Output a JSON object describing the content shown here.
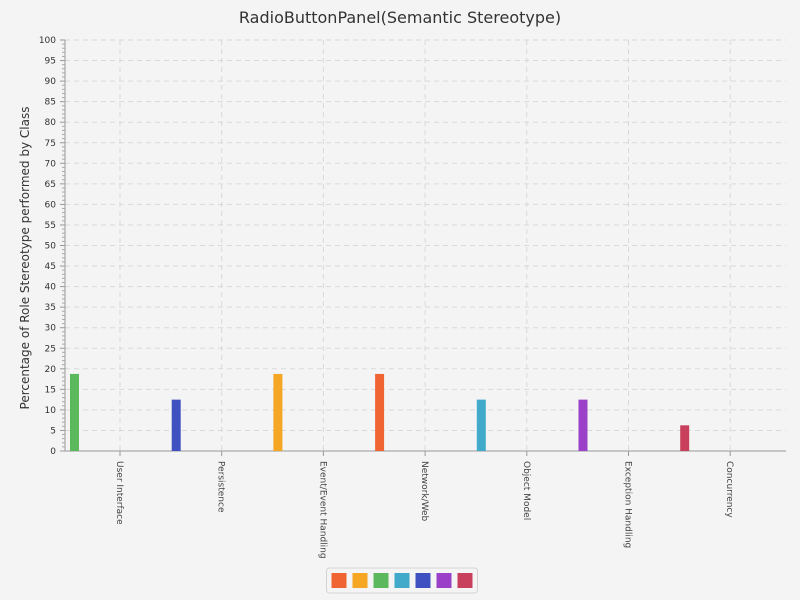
{
  "chart_data": {
    "type": "bar",
    "title": "RadioButtonPanel(Semantic Stereotype)",
    "xlabel": "",
    "ylabel": "Percentage of Role Stereotype performed by Class",
    "ylim": [
      0,
      100
    ],
    "ytick_step": 5,
    "grid": true,
    "legend_placement": "bottom-center",
    "categories": [
      "User Interface",
      "Persistence",
      "Event/Event Handling",
      "Network/Web",
      "Object Model",
      "Exception Handling",
      "Concurrency"
    ],
    "series": [
      {
        "color": "#f06433",
        "values": [
          0,
          0,
          0,
          18.75,
          0,
          0,
          0
        ]
      },
      {
        "color": "#f5a623",
        "values": [
          0,
          0,
          18.75,
          0,
          0,
          0,
          0
        ]
      },
      {
        "color": "#5cb85c",
        "values": [
          18.75,
          0,
          0,
          0,
          0,
          0,
          0
        ]
      },
      {
        "color": "#41a9c9",
        "values": [
          0,
          0,
          0,
          0,
          12.5,
          0,
          0
        ]
      },
      {
        "color": "#3f51c1",
        "values": [
          0,
          12.5,
          0,
          0,
          0,
          0,
          0
        ]
      },
      {
        "color": "#9b40c9",
        "values": [
          0,
          0,
          0,
          0,
          0,
          12.5,
          0
        ]
      },
      {
        "color": "#c8405c",
        "values": [
          0,
          0,
          0,
          0,
          0,
          0,
          6.25
        ]
      }
    ]
  }
}
